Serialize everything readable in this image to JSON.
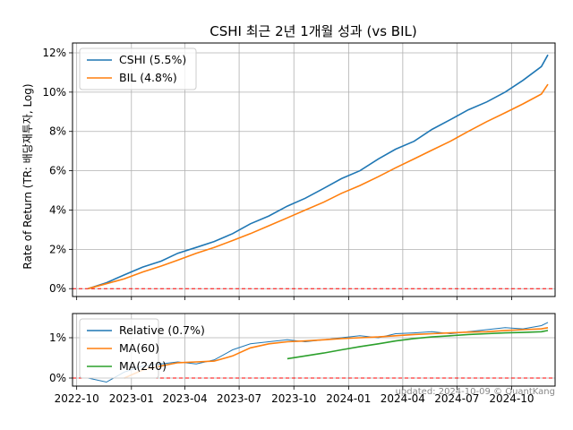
{
  "chart_data": [
    {
      "type": "line",
      "title": "CSHI 최근 2년 1개월 성과 (vs BIL)",
      "ylabel": "Rate of Return (TR: 배당재투자, Log)",
      "xlabel": "",
      "x_dates": [
        "2022-10-20",
        "2022-11-20",
        "2022-12-20",
        "2023-01-20",
        "2023-02-20",
        "2023-03-20",
        "2023-04-20",
        "2023-05-20",
        "2023-06-20",
        "2023-07-20",
        "2023-08-20",
        "2023-09-20",
        "2023-10-20",
        "2023-11-20",
        "2023-12-20",
        "2024-01-20",
        "2024-02-20",
        "2024-03-20",
        "2024-04-20",
        "2024-05-20",
        "2024-06-20",
        "2024-07-20",
        "2024-08-20",
        "2024-09-20",
        "2024-10-20",
        "2024-11-20",
        "2024-12-01"
      ],
      "series": [
        {
          "name": "CSHI (5.5%)",
          "color": "#1f77b4",
          "values": [
            0.0,
            0.3,
            0.7,
            1.1,
            1.4,
            1.8,
            2.1,
            2.4,
            2.8,
            3.3,
            3.7,
            4.2,
            4.6,
            5.1,
            5.6,
            6.0,
            6.6,
            7.1,
            7.5,
            8.1,
            8.6,
            9.1,
            9.5,
            10.0,
            10.6,
            11.3,
            11.9
          ]
        },
        {
          "name": "BIL (4.8%)",
          "color": "#ff7f0e",
          "values": [
            0.0,
            0.25,
            0.5,
            0.85,
            1.15,
            1.45,
            1.8,
            2.1,
            2.45,
            2.8,
            3.2,
            3.6,
            4.0,
            4.4,
            4.85,
            5.25,
            5.7,
            6.15,
            6.6,
            7.05,
            7.5,
            8.0,
            8.5,
            8.95,
            9.4,
            9.9,
            10.4
          ]
        }
      ],
      "yticks": [
        "0%",
        "2%",
        "4%",
        "6%",
        "8%",
        "10%",
        "12%"
      ],
      "ylim": [
        -0.4,
        12.5
      ],
      "reference_line": {
        "value": 0,
        "color": "#ff0000",
        "style": "dashed"
      },
      "grid": true,
      "legend_position": "top-left"
    },
    {
      "type": "line",
      "title": "",
      "x_dates": [
        "2022-10-20",
        "2022-11-20",
        "2022-12-20",
        "2023-01-20",
        "2023-02-20",
        "2023-03-20",
        "2023-04-20",
        "2023-05-20",
        "2023-06-20",
        "2023-07-20",
        "2023-08-20",
        "2023-09-20",
        "2023-10-20",
        "2023-11-20",
        "2023-12-20",
        "2024-01-20",
        "2024-02-20",
        "2024-03-20",
        "2024-04-20",
        "2024-05-20",
        "2024-06-20",
        "2024-07-20",
        "2024-08-20",
        "2024-09-20",
        "2024-10-20",
        "2024-11-20",
        "2024-12-01"
      ],
      "series": [
        {
          "name": "Relative (0.7%)",
          "color": "#1f77b4",
          "values": [
            0.0,
            -0.1,
            0.15,
            0.3,
            0.35,
            0.4,
            0.35,
            0.45,
            0.7,
            0.85,
            0.9,
            0.95,
            0.9,
            0.95,
            1.0,
            1.05,
            1.0,
            1.1,
            1.12,
            1.15,
            1.1,
            1.15,
            1.2,
            1.25,
            1.22,
            1.3,
            1.38
          ]
        },
        {
          "name": "MA(60)",
          "color": "#ff7f0e",
          "values": [
            null,
            null,
            0.0,
            0.2,
            0.3,
            0.38,
            0.4,
            0.42,
            0.55,
            0.75,
            0.85,
            0.9,
            0.92,
            0.95,
            0.98,
            1.0,
            1.02,
            1.05,
            1.08,
            1.1,
            1.12,
            1.14,
            1.15,
            1.18,
            1.2,
            1.22,
            1.25
          ]
        },
        {
          "name": "MA(240)",
          "color": "#2ca02c",
          "values": [
            null,
            null,
            null,
            null,
            null,
            null,
            null,
            null,
            null,
            null,
            null,
            0.48,
            0.55,
            0.62,
            0.7,
            0.78,
            0.85,
            0.92,
            0.98,
            1.02,
            1.05,
            1.08,
            1.1,
            1.12,
            1.13,
            1.15,
            1.18
          ]
        }
      ],
      "yticks": [
        "0%",
        "1%"
      ],
      "ylim": [
        -0.2,
        1.6
      ],
      "reference_line": {
        "value": 0,
        "color": "#ff0000",
        "style": "dashed"
      },
      "xticks": [
        "2022-10",
        "2023-01",
        "2023-04",
        "2023-07",
        "2023-10",
        "2024-01",
        "2024-04",
        "2024-07",
        "2024-10"
      ],
      "grid": true,
      "legend_position": "top-left"
    }
  ],
  "footer": "updated: 2024-10-09 © QuantKang"
}
